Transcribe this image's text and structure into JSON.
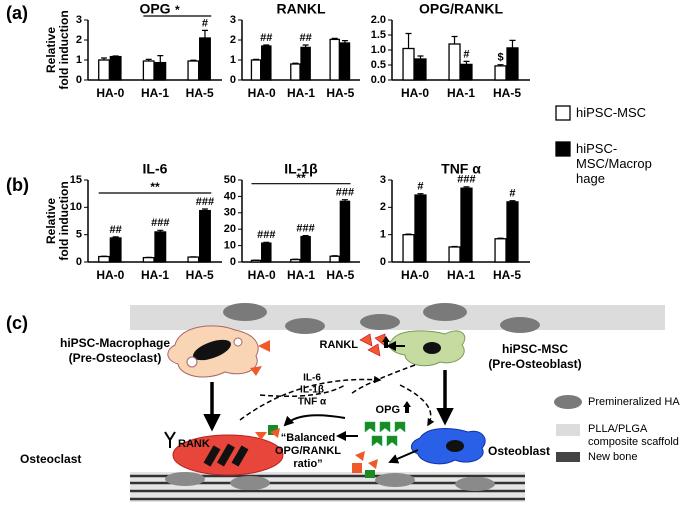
{
  "panels": [
    "(a)",
    "(b)",
    "(c)"
  ],
  "chart_data": [
    {
      "type": "bar",
      "title": "OPG",
      "ylabel": [
        "Relative",
        "fold induction"
      ],
      "categories": [
        "HA-0",
        "HA-1",
        "HA-5"
      ],
      "ylim": [
        0,
        3
      ],
      "yticks": [
        0,
        1,
        2,
        3
      ],
      "series": [
        {
          "name": "hiPSC-MSC",
          "color": "#ffffff",
          "values": [
            1.0,
            0.95,
            0.95
          ],
          "errors": [
            0.1,
            0.08,
            0.04
          ]
        },
        {
          "name": "hiPSC-MSC/Macrophage",
          "color": "#000000",
          "values": [
            1.17,
            0.87,
            2.1
          ],
          "errors": [
            0.03,
            0.35,
            0.38
          ],
          "significance": [
            null,
            null,
            "#"
          ]
        }
      ],
      "comparison": {
        "label": "*",
        "between": [
          "HA-1",
          "HA-5"
        ]
      }
    },
    {
      "type": "bar",
      "title": "RANKL",
      "categories": [
        "HA-0",
        "HA-1",
        "HA-5"
      ],
      "ylim": [
        0,
        3
      ],
      "yticks": [
        0,
        1,
        2,
        3
      ],
      "series": [
        {
          "color": "#ffffff",
          "values": [
            1.0,
            0.8,
            2.03
          ],
          "errors": [
            0.03,
            0.04,
            0.05
          ]
        },
        {
          "color": "#000000",
          "values": [
            1.7,
            1.63,
            1.85
          ],
          "errors": [
            0.05,
            0.12,
            0.12
          ],
          "significance": [
            "##",
            "##",
            null
          ]
        }
      ]
    },
    {
      "type": "bar",
      "title": "OPG/RANKL",
      "categories": [
        "HA-0",
        "HA-1",
        "HA-5"
      ],
      "ylim": [
        0,
        2
      ],
      "yticks": [
        {
          "value": 0,
          "label": "0.0"
        },
        {
          "value": 0.5,
          "label": "0.5"
        },
        {
          "value": 1,
          "label": "1.0"
        },
        {
          "value": 1.5,
          "label": "1.5"
        },
        {
          "value": 2,
          "label": "2.0"
        }
      ],
      "series": [
        {
          "color": "#ffffff",
          "values": [
            1.05,
            1.2,
            0.47
          ],
          "errors": [
            0.5,
            0.25,
            0.04
          ],
          "significance": [
            null,
            null,
            "$"
          ]
        },
        {
          "color": "#000000",
          "values": [
            0.7,
            0.52,
            1.07
          ],
          "errors": [
            0.1,
            0.1,
            0.25
          ],
          "significance": [
            null,
            "#",
            null
          ]
        }
      ]
    },
    {
      "type": "bar",
      "title": "IL-6",
      "ylabel": [
        "Relative",
        "fold induction"
      ],
      "categories": [
        "HA-0",
        "HA-1",
        "HA-5"
      ],
      "ylim": [
        0,
        15
      ],
      "yticks": [
        0,
        5,
        10,
        15
      ],
      "series": [
        {
          "color": "#ffffff",
          "values": [
            1.0,
            0.8,
            0.9
          ],
          "errors": [
            0.05,
            0.05,
            0.05
          ]
        },
        {
          "color": "#000000",
          "values": [
            4.4,
            5.5,
            9.4
          ],
          "errors": [
            0.2,
            0.3,
            0.3
          ],
          "significance": [
            "##",
            "###",
            "###"
          ]
        }
      ],
      "comparison": {
        "label": "**",
        "between": [
          "HA-0",
          "HA-5"
        ]
      }
    },
    {
      "type": "bar",
      "title": "IL-1β",
      "categories": [
        "HA-0",
        "HA-1",
        "HA-5"
      ],
      "ylim": [
        0,
        50
      ],
      "yticks": [
        0,
        10,
        20,
        30,
        40,
        50
      ],
      "series": [
        {
          "color": "#ffffff",
          "values": [
            1.0,
            1.5,
            3.5
          ],
          "errors": [
            0.1,
            0.2,
            0.3
          ]
        },
        {
          "color": "#000000",
          "values": [
            11.5,
            15.5,
            37
          ],
          "errors": [
            0.5,
            0.6,
            1.0
          ],
          "significance": [
            "###",
            "###",
            "###"
          ]
        }
      ],
      "comparison": {
        "label": "**",
        "between": [
          "HA-0",
          "HA-5"
        ]
      }
    },
    {
      "type": "bar",
      "title": "TNF α",
      "categories": [
        "HA-0",
        "HA-1",
        "HA-5"
      ],
      "ylim": [
        0,
        3
      ],
      "yticks": [
        0,
        1,
        2,
        3
      ],
      "series": [
        {
          "color": "#ffffff",
          "values": [
            1.0,
            0.55,
            0.85
          ],
          "errors": [
            0.02,
            0.02,
            0.02
          ]
        },
        {
          "color": "#000000",
          "values": [
            2.45,
            2.7,
            2.2
          ],
          "errors": [
            0.05,
            0.05,
            0.04
          ],
          "significance": [
            "#",
            "###",
            "#"
          ]
        }
      ]
    }
  ],
  "diagram": {
    "macrophage": "hiPSC-Macrophage",
    "macrophage_role": "(Pre-Osteoclast)",
    "msc": "hiPSC-MSC",
    "msc_role": "(Pre-Osteoblast)",
    "rankl": "RANKL",
    "cytokines": [
      "IL-6",
      "IL-1β",
      "TNF α"
    ],
    "opg": "OPG",
    "balance": "“Balanced OPG/RANKL ratio”",
    "osteoclast": "Osteoclast",
    "rank": "RANK",
    "osteoblast": "Osteoblast",
    "legend": [
      "Premineralized HA",
      "PLLA/PLGA composite scaffold",
      "New bone"
    ]
  }
}
